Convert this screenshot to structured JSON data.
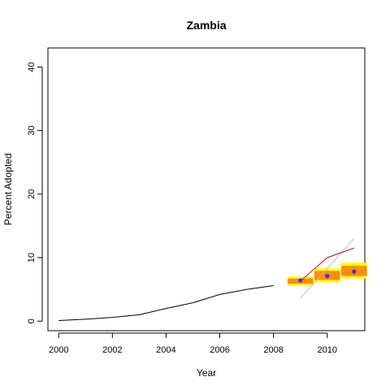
{
  "chart_data": {
    "type": "line",
    "title": "Zambia",
    "xlabel": "Year",
    "ylabel": "Percent Adopted",
    "xlim": [
      1999.6,
      2011.4
    ],
    "ylim": [
      -1.5,
      43
    ],
    "x_ticks": [
      2000,
      2002,
      2004,
      2006,
      2008,
      2010
    ],
    "y_ticks": [
      0,
      10,
      20,
      30,
      40
    ],
    "grid": false,
    "legend": "none",
    "series": [
      {
        "kind": "historical",
        "color": "#000000",
        "x": [
          2000,
          2001,
          2002,
          2003,
          2004,
          2005,
          2006,
          2007,
          2008
        ],
        "y": [
          0.1,
          0.3,
          0.6,
          1.0,
          2.0,
          2.9,
          4.2,
          5.0,
          5.6
        ]
      },
      {
        "kind": "forecast-box",
        "colors": {
          "outer": "#ffff00",
          "inner": "#ff8c00",
          "point": "#3333ff"
        },
        "x": [
          2009,
          2010,
          2011
        ],
        "y": [
          6.4,
          7.1,
          7.8
        ],
        "outer": [
          [
            5.6,
            7.0
          ],
          [
            6.1,
            8.3
          ],
          [
            6.7,
            9.2
          ]
        ],
        "inner": [
          [
            5.9,
            6.7
          ],
          [
            6.5,
            7.9
          ],
          [
            7.1,
            8.7
          ]
        ]
      },
      {
        "kind": "upper-trend",
        "color": "#cc0000",
        "x": [
          2009,
          2010,
          2011
        ],
        "y": [
          6.3,
          10.0,
          11.5
        ]
      },
      {
        "kind": "linear-trend",
        "color": "#bbbbbb",
        "x": [
          2009,
          2011
        ],
        "y": [
          3.6,
          13.0
        ]
      }
    ]
  }
}
